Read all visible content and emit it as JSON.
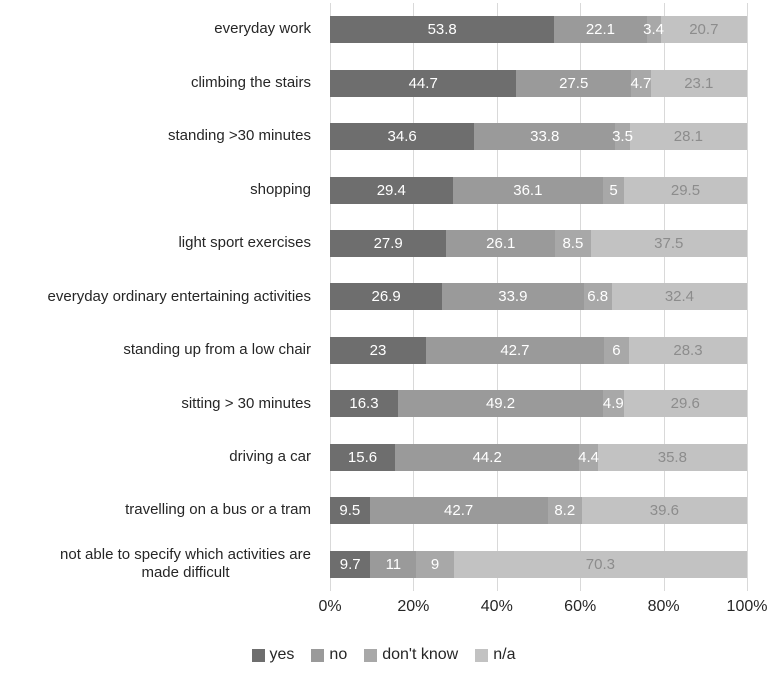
{
  "chart_data": {
    "type": "bar",
    "orientation": "horizontal-stacked",
    "title": "",
    "xlabel": "",
    "ylabel": "",
    "xlim": [
      0,
      100
    ],
    "x_ticks": [
      "0%",
      "20%",
      "40%",
      "60%",
      "80%",
      "100%"
    ],
    "gridlines": true,
    "gridline_color": "#d9d9d9",
    "legend_position": "bottom",
    "categories": [
      "everyday work",
      "climbing the stairs",
      "standing >30 minutes",
      "shopping",
      "light sport exercises",
      "everyday ordinary entertaining activities",
      "standing up from a low chair",
      "sitting > 30 minutes",
      "driving a car",
      "travelling on a bus or a tram",
      "not able to specify which activities are\nmade difficult"
    ],
    "series": [
      {
        "name": "yes",
        "color": "#6e6e6e",
        "label_color": "#ffffff",
        "values": [
          53.8,
          44.7,
          34.6,
          29.4,
          27.9,
          26.9,
          23,
          16.3,
          15.6,
          9.5,
          9.7
        ]
      },
      {
        "name": "no",
        "color": "#9a9a9a",
        "label_color": "#ffffff",
        "values": [
          22.1,
          27.5,
          33.8,
          36.1,
          26.1,
          33.9,
          42.7,
          49.2,
          44.2,
          42.7,
          11
        ]
      },
      {
        "name": "don't know",
        "color": "#a8a8a8",
        "label_color": "#ffffff",
        "values": [
          3.4,
          4.7,
          3.5,
          5,
          8.5,
          6.8,
          6,
          4.9,
          4.4,
          8.2,
          9
        ]
      },
      {
        "name": "n/a",
        "color": "#c2c2c2",
        "label_color": "#8c8c8c",
        "values": [
          20.7,
          23.1,
          28.1,
          29.5,
          37.5,
          32.4,
          28.3,
          29.6,
          35.8,
          39.6,
          70.3
        ]
      }
    ]
  }
}
